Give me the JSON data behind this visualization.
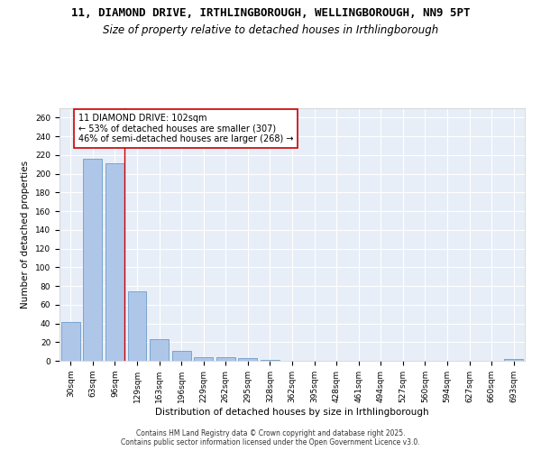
{
  "title_line1": "11, DIAMOND DRIVE, IRTHLINGBOROUGH, WELLINGBOROUGH, NN9 5PT",
  "title_line2": "Size of property relative to detached houses in Irthlingborough",
  "xlabel": "Distribution of detached houses by size in Irthlingborough",
  "ylabel": "Number of detached properties",
  "categories": [
    "30sqm",
    "63sqm",
    "96sqm",
    "129sqm",
    "163sqm",
    "196sqm",
    "229sqm",
    "262sqm",
    "295sqm",
    "328sqm",
    "362sqm",
    "395sqm",
    "428sqm",
    "461sqm",
    "494sqm",
    "527sqm",
    "560sqm",
    "594sqm",
    "627sqm",
    "660sqm",
    "693sqm"
  ],
  "values": [
    41,
    216,
    211,
    74,
    23,
    11,
    4,
    4,
    3,
    1,
    0,
    0,
    0,
    0,
    0,
    0,
    0,
    0,
    0,
    0,
    2
  ],
  "bar_color": "#aec6e8",
  "bar_edge_color": "#5a8fc0",
  "vline_x_idx": 2,
  "vline_color": "#cc0000",
  "annotation_text": "11 DIAMOND DRIVE: 102sqm\n← 53% of detached houses are smaller (307)\n46% of semi-detached houses are larger (268) →",
  "annotation_box_color": "#ffffff",
  "annotation_box_edge": "#cc0000",
  "ylim": [
    0,
    270
  ],
  "yticks": [
    0,
    20,
    40,
    60,
    80,
    100,
    120,
    140,
    160,
    180,
    200,
    220,
    240,
    260
  ],
  "background_color": "#e8eef7",
  "grid_color": "#ffffff",
  "footer_text": "Contains HM Land Registry data © Crown copyright and database right 2025.\nContains public sector information licensed under the Open Government Licence v3.0.",
  "title_fontsize": 9,
  "subtitle_fontsize": 8.5,
  "axis_label_fontsize": 7.5,
  "tick_fontsize": 6.5,
  "annotation_fontsize": 7
}
